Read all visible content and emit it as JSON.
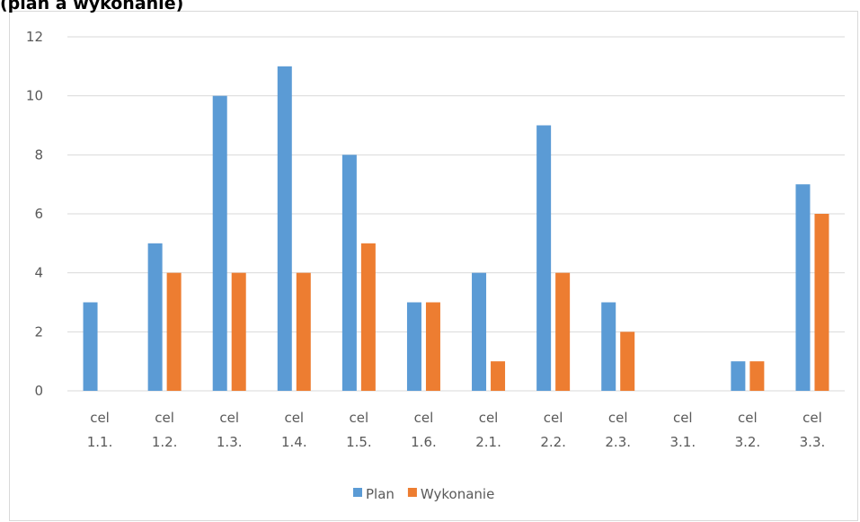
{
  "chart_data": {
    "type": "bar",
    "title": "(plan a wykonanie)",
    "categories": [
      [
        "cel",
        "1.1."
      ],
      [
        "cel",
        "1.2."
      ],
      [
        "cel",
        "1.3."
      ],
      [
        "cel",
        "1.4."
      ],
      [
        "cel",
        "1.5."
      ],
      [
        "cel",
        "1.6."
      ],
      [
        "cel",
        "2.1."
      ],
      [
        "cel",
        "2.2."
      ],
      [
        "cel",
        "2.3."
      ],
      [
        "cel",
        "3.1."
      ],
      [
        "cel",
        "3.2."
      ],
      [
        "cel",
        "3.3."
      ]
    ],
    "series": [
      {
        "name": "Plan",
        "color": "#5b9bd5",
        "values": [
          3,
          5,
          10,
          11,
          8,
          3,
          4,
          9,
          3,
          0,
          1,
          7
        ]
      },
      {
        "name": "Wykonanie",
        "color": "#ed7d31",
        "values": [
          0,
          4,
          4,
          4,
          5,
          3,
          1,
          4,
          2,
          0,
          1,
          6
        ]
      }
    ],
    "ylim": [
      0,
      12
    ],
    "yticks": [
      "0",
      "2",
      "4",
      "6",
      "8",
      "10",
      "12"
    ],
    "grid": true,
    "legend": "bottom"
  }
}
